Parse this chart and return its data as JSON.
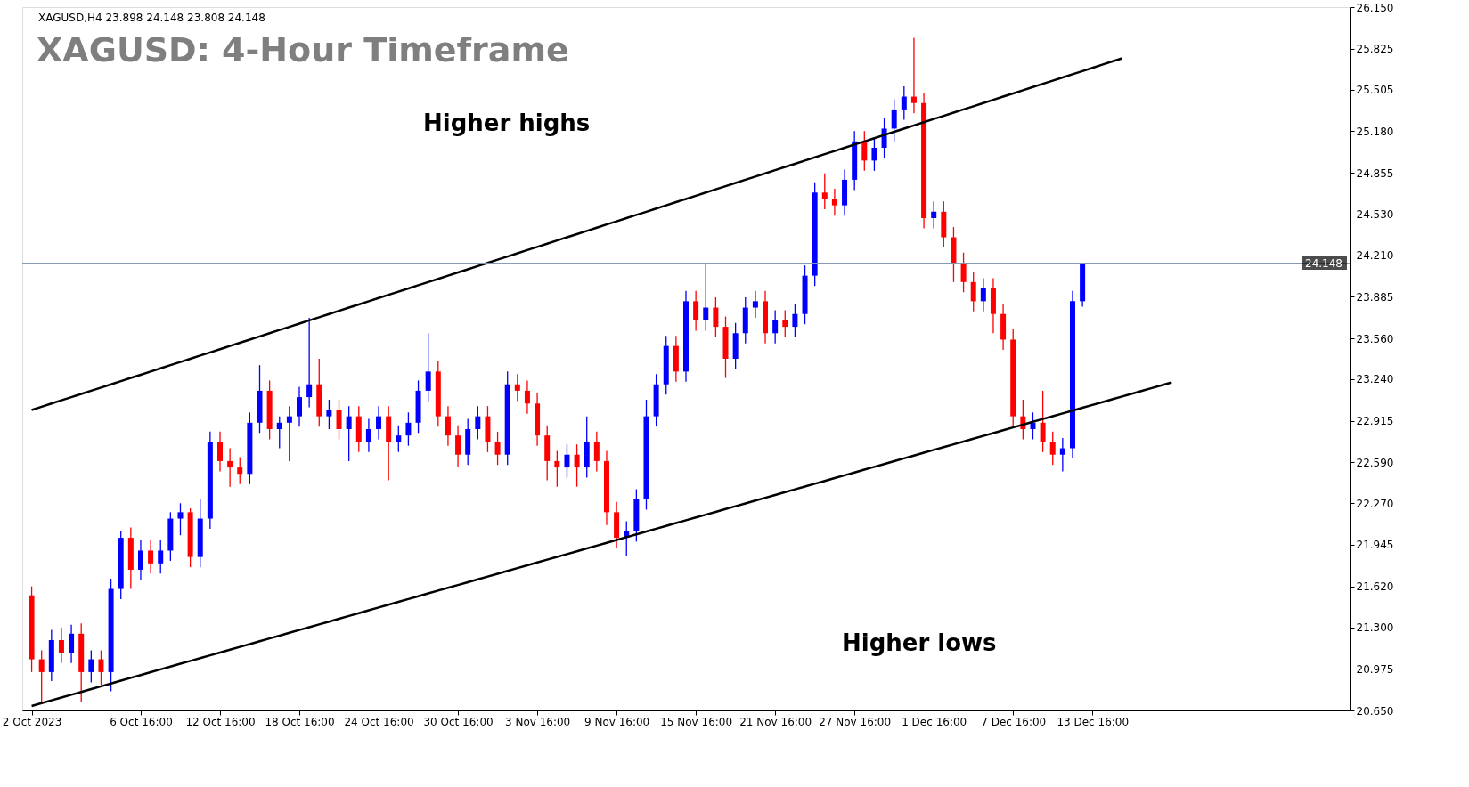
{
  "chart_data": {
    "type": "candlestick",
    "title": "XAGUSD: 4-Hour Timeframe",
    "subtitle": "XAGUSD,H4  23.898 24.148 23.808 24.148",
    "categories": [
      "2 Oct 2023",
      null,
      null,
      null,
      null,
      null,
      null,
      null,
      null,
      null,
      null,
      "6 Oct 16:00",
      null,
      null,
      null,
      null,
      null,
      null,
      null,
      "12 Oct 16:00",
      null,
      null,
      null,
      null,
      null,
      null,
      null,
      "18 Oct 16:00",
      null,
      null,
      null,
      null,
      null,
      null,
      null,
      "24 Oct 16:00",
      null,
      null,
      null,
      null,
      null,
      null,
      null,
      "30 Oct 16:00",
      null,
      null,
      null,
      null,
      null,
      null,
      null,
      "3 Nov 16:00",
      null,
      null,
      null,
      null,
      null,
      null,
      null,
      "9 Nov 16:00",
      null,
      null,
      null,
      null,
      null,
      null,
      null,
      "15 Nov 16:00",
      null,
      null,
      null,
      null,
      null,
      null,
      null,
      "21 Nov 16:00",
      null,
      null,
      null,
      null,
      null,
      null,
      null,
      "27 Nov 16:00",
      null,
      null,
      null,
      null,
      null,
      null,
      null,
      "1 Dec 16:00",
      null,
      null,
      null,
      null,
      null,
      null,
      null,
      "7 Dec 16:00",
      null,
      null,
      null,
      null,
      null,
      null,
      null,
      "13 Dec 16:00",
      null,
      null,
      null,
      null,
      null,
      null,
      null,
      null,
      null,
      null,
      null,
      null,
      null,
      null,
      null,
      null,
      null,
      null,
      null,
      null,
      null,
      null,
      null,
      null,
      null
    ],
    "ohlc": [
      [
        21.55,
        21.62,
        20.95,
        21.05
      ],
      [
        21.05,
        21.12,
        20.7,
        20.95
      ],
      [
        20.95,
        21.28,
        20.88,
        21.2
      ],
      [
        21.2,
        21.3,
        21.02,
        21.1
      ],
      [
        21.1,
        21.32,
        21.02,
        21.25
      ],
      [
        21.25,
        21.33,
        20.72,
        20.95
      ],
      [
        20.95,
        21.12,
        20.87,
        21.05
      ],
      [
        21.05,
        21.12,
        20.85,
        20.95
      ],
      [
        20.95,
        21.68,
        20.8,
        21.6
      ],
      [
        21.6,
        22.05,
        21.52,
        22.0
      ],
      [
        22.0,
        22.08,
        21.6,
        21.75
      ],
      [
        21.75,
        21.98,
        21.67,
        21.9
      ],
      [
        21.9,
        21.98,
        21.72,
        21.8
      ],
      [
        21.8,
        21.98,
        21.72,
        21.9
      ],
      [
        21.9,
        22.2,
        21.82,
        22.15
      ],
      [
        22.15,
        22.27,
        22.02,
        22.2
      ],
      [
        22.2,
        22.23,
        21.77,
        21.85
      ],
      [
        21.85,
        22.3,
        21.77,
        22.15
      ],
      [
        22.15,
        22.83,
        22.07,
        22.75
      ],
      [
        22.75,
        22.83,
        22.52,
        22.6
      ],
      [
        22.6,
        22.7,
        22.4,
        22.55
      ],
      [
        22.55,
        22.63,
        22.42,
        22.5
      ],
      [
        22.5,
        22.98,
        22.42,
        22.9
      ],
      [
        22.9,
        23.35,
        22.82,
        23.15
      ],
      [
        23.15,
        23.23,
        22.77,
        22.85
      ],
      [
        22.85,
        22.95,
        22.7,
        22.9
      ],
      [
        22.9,
        23.03,
        22.6,
        22.95
      ],
      [
        22.95,
        23.18,
        22.87,
        23.1
      ],
      [
        23.1,
        23.72,
        23.02,
        23.2
      ],
      [
        23.2,
        23.4,
        22.87,
        22.95
      ],
      [
        22.95,
        23.08,
        22.85,
        23.0
      ],
      [
        23.0,
        23.08,
        22.77,
        22.85
      ],
      [
        22.85,
        23.03,
        22.6,
        22.95
      ],
      [
        22.95,
        23.03,
        22.67,
        22.75
      ],
      [
        22.75,
        22.93,
        22.67,
        22.85
      ],
      [
        22.85,
        23.03,
        22.77,
        22.95
      ],
      [
        22.95,
        23.03,
        22.45,
        22.75
      ],
      [
        22.75,
        22.88,
        22.67,
        22.8
      ],
      [
        22.8,
        22.98,
        22.72,
        22.9
      ],
      [
        22.9,
        23.23,
        22.82,
        23.15
      ],
      [
        23.15,
        23.6,
        23.07,
        23.3
      ],
      [
        23.3,
        23.38,
        22.87,
        22.95
      ],
      [
        22.95,
        23.03,
        22.72,
        22.8
      ],
      [
        22.8,
        22.88,
        22.55,
        22.65
      ],
      [
        22.65,
        22.93,
        22.57,
        22.85
      ],
      [
        22.85,
        23.03,
        22.77,
        22.95
      ],
      [
        22.95,
        23.03,
        22.67,
        22.75
      ],
      [
        22.75,
        22.83,
        22.57,
        22.65
      ],
      [
        22.65,
        23.3,
        22.57,
        23.2
      ],
      [
        23.2,
        23.28,
        23.07,
        23.15
      ],
      [
        23.15,
        23.23,
        22.97,
        23.05
      ],
      [
        23.05,
        23.13,
        22.72,
        22.8
      ],
      [
        22.8,
        22.88,
        22.45,
        22.6
      ],
      [
        22.6,
        22.68,
        22.4,
        22.55
      ],
      [
        22.55,
        22.73,
        22.47,
        22.65
      ],
      [
        22.65,
        22.73,
        22.4,
        22.55
      ],
      [
        22.55,
        22.95,
        22.47,
        22.75
      ],
      [
        22.75,
        22.83,
        22.52,
        22.6
      ],
      [
        22.6,
        22.68,
        22.1,
        22.2
      ],
      [
        22.2,
        22.28,
        21.92,
        22.0
      ],
      [
        22.0,
        22.13,
        21.86,
        22.05
      ],
      [
        22.05,
        22.38,
        21.97,
        22.3
      ],
      [
        22.3,
        23.08,
        22.22,
        22.95
      ],
      [
        22.95,
        23.28,
        22.87,
        23.2
      ],
      [
        23.2,
        23.58,
        23.12,
        23.5
      ],
      [
        23.5,
        23.58,
        23.22,
        23.3
      ],
      [
        23.3,
        23.93,
        23.22,
        23.85
      ],
      [
        23.85,
        23.93,
        23.62,
        23.7
      ],
      [
        23.7,
        24.15,
        23.62,
        23.8
      ],
      [
        23.8,
        23.88,
        23.57,
        23.65
      ],
      [
        23.65,
        23.73,
        23.25,
        23.4
      ],
      [
        23.4,
        23.68,
        23.32,
        23.6
      ],
      [
        23.6,
        23.88,
        23.52,
        23.8
      ],
      [
        23.8,
        23.93,
        23.72,
        23.85
      ],
      [
        23.85,
        23.93,
        23.52,
        23.6
      ],
      [
        23.6,
        23.78,
        23.52,
        23.7
      ],
      [
        23.7,
        23.78,
        23.57,
        23.65
      ],
      [
        23.65,
        23.83,
        23.57,
        23.75
      ],
      [
        23.75,
        24.13,
        23.67,
        24.05
      ],
      [
        24.05,
        24.78,
        23.97,
        24.7
      ],
      [
        24.7,
        24.85,
        24.57,
        24.65
      ],
      [
        24.65,
        24.73,
        24.52,
        24.6
      ],
      [
        24.6,
        24.88,
        24.52,
        24.8
      ],
      [
        24.8,
        25.18,
        24.72,
        25.1
      ],
      [
        25.1,
        25.18,
        24.87,
        24.95
      ],
      [
        24.95,
        25.13,
        24.87,
        25.05
      ],
      [
        25.05,
        25.28,
        24.97,
        25.2
      ],
      [
        25.2,
        25.43,
        25.1,
        25.35
      ],
      [
        25.35,
        25.53,
        25.27,
        25.45
      ],
      [
        25.45,
        25.91,
        25.32,
        25.4
      ],
      [
        25.4,
        25.48,
        24.42,
        24.5
      ],
      [
        24.5,
        24.63,
        24.42,
        24.55
      ],
      [
        24.55,
        24.63,
        24.27,
        24.35
      ],
      [
        24.35,
        24.43,
        24.0,
        24.15
      ],
      [
        24.15,
        24.23,
        23.92,
        24.0
      ],
      [
        24.0,
        24.08,
        23.77,
        23.85
      ],
      [
        23.85,
        24.03,
        23.77,
        23.95
      ],
      [
        23.95,
        24.03,
        23.6,
        23.75
      ],
      [
        23.75,
        23.83,
        23.47,
        23.55
      ],
      [
        23.55,
        23.63,
        22.87,
        22.95
      ],
      [
        22.95,
        23.08,
        22.77,
        22.85
      ],
      [
        22.85,
        22.98,
        22.77,
        22.9
      ],
      [
        22.9,
        23.15,
        22.67,
        22.75
      ],
      [
        22.75,
        22.83,
        22.57,
        22.65
      ],
      [
        22.65,
        22.78,
        22.52,
        22.7
      ],
      [
        22.7,
        23.93,
        22.62,
        23.85
      ],
      [
        23.85,
        24.148,
        23.808,
        24.148
      ],
      null,
      null,
      null,
      null,
      null,
      null,
      null,
      null,
      null,
      null,
      null,
      null,
      null,
      null,
      null,
      null,
      null,
      null,
      null,
      null,
      null,
      null,
      null,
      null,
      null,
      null
    ],
    "series": [
      {
        "type": "line",
        "color": "#000000",
        "values": [
          23.0,
          23.025,
          23.05,
          23.075,
          23.1,
          23.125,
          23.15,
          23.175,
          23.2,
          23.225,
          23.25,
          23.275,
          23.3,
          23.325,
          23.35,
          23.375,
          23.4,
          23.425,
          23.45,
          23.475,
          23.5,
          23.525,
          23.55,
          23.575,
          23.6,
          23.625,
          23.65,
          23.675,
          23.7,
          23.725,
          23.75,
          23.775,
          23.8,
          23.825,
          23.85,
          23.875,
          23.9,
          23.925,
          23.95,
          23.975,
          24.0,
          24.025,
          24.05,
          24.075,
          24.1,
          24.125,
          24.15,
          24.175,
          24.2,
          24.225,
          24.25,
          24.275,
          24.3,
          24.325,
          24.35,
          24.375,
          24.4,
          24.425,
          24.45,
          24.475,
          24.5,
          24.525,
          24.55,
          24.575,
          24.6,
          24.625,
          24.65,
          24.675,
          24.7,
          24.725,
          24.75,
          24.775,
          24.8,
          24.825,
          24.85,
          24.875,
          24.9,
          24.925,
          24.95,
          24.975,
          25.0,
          25.025,
          25.05,
          25.075,
          25.1,
          25.125,
          25.15,
          25.175,
          25.2,
          25.225,
          25.25,
          25.275,
          25.3,
          25.325,
          25.35,
          25.375,
          25.4,
          25.425,
          25.45,
          25.475,
          25.5,
          25.525,
          25.55,
          25.575,
          25.6,
          25.625,
          25.65,
          25.675,
          25.7,
          25.725,
          25.75,
          null,
          null,
          null,
          null,
          null,
          null,
          null,
          null,
          null,
          null,
          null,
          null,
          null,
          null,
          null,
          null,
          null,
          null,
          null,
          null,
          null,
          null
        ]
      },
      {
        "type": "line",
        "color": "#000000",
        "values": [
          20.685,
          20.707,
          20.729,
          20.751,
          20.773,
          20.795,
          20.817,
          20.839,
          20.861,
          20.883,
          20.905,
          20.927,
          20.949,
          20.971,
          20.993,
          21.015,
          21.037,
          21.059,
          21.081,
          21.103,
          21.125,
          21.147,
          21.169,
          21.191,
          21.213,
          21.235,
          21.257,
          21.279,
          21.301,
          21.323,
          21.345,
          21.367,
          21.389,
          21.411,
          21.433,
          21.455,
          21.477,
          21.499,
          21.521,
          21.543,
          21.565,
          21.587,
          21.609,
          21.631,
          21.653,
          21.675,
          21.697,
          21.719,
          21.741,
          21.763,
          21.785,
          21.807,
          21.829,
          21.851,
          21.873,
          21.895,
          21.917,
          21.939,
          21.961,
          21.983,
          22.005,
          22.027,
          22.049,
          22.071,
          22.093,
          22.115,
          22.137,
          22.159,
          22.181,
          22.203,
          22.225,
          22.247,
          22.269,
          22.291,
          22.313,
          22.335,
          22.357,
          22.379,
          22.401,
          22.423,
          22.445,
          22.467,
          22.489,
          22.511,
          22.533,
          22.555,
          22.577,
          22.599,
          22.621,
          22.643,
          22.665,
          22.687,
          22.709,
          22.731,
          22.753,
          22.775,
          22.797,
          22.819,
          22.841,
          22.863,
          22.885,
          22.907,
          22.929,
          22.951,
          22.973,
          22.995,
          23.017,
          23.039,
          23.061,
          23.083,
          23.105,
          23.127,
          23.149,
          23.171,
          23.193,
          23.215,
          null,
          null,
          null,
          null,
          null,
          null,
          null,
          null,
          null,
          null,
          null,
          null,
          null,
          null,
          null,
          null,
          null
        ]
      }
    ],
    "ylim": [
      20.65,
      26.15
    ],
    "yticks": [
      {
        "value": 20.65,
        "label": "20.650"
      },
      {
        "value": 20.975,
        "label": "20.975"
      },
      {
        "value": 21.3,
        "label": "21.300"
      },
      {
        "value": 21.62,
        "label": "21.620"
      },
      {
        "value": 21.945,
        "label": "21.945"
      },
      {
        "value": 22.27,
        "label": "22.270"
      },
      {
        "value": 22.59,
        "label": "22.590"
      },
      {
        "value": 22.915,
        "label": "22.915"
      },
      {
        "value": 23.24,
        "label": "23.240"
      },
      {
        "value": 23.56,
        "label": "23.560"
      },
      {
        "value": 23.885,
        "label": "23.885"
      },
      {
        "value": 24.21,
        "label": "24.210"
      },
      {
        "value": 24.53,
        "label": "24.530"
      },
      {
        "value": 24.855,
        "label": "24.855"
      },
      {
        "value": 25.18,
        "label": "25.180"
      },
      {
        "value": 25.505,
        "label": "25.505"
      },
      {
        "value": 25.825,
        "label": "25.825"
      },
      {
        "value": 26.15,
        "label": "26.150"
      }
    ],
    "ref_lines": [
      {
        "axis": "y",
        "value": 24.148,
        "label": "24.148",
        "color": "#8497b0"
      }
    ],
    "annotations": [
      "Higher highs",
      "Higher lows"
    ],
    "grid": false,
    "legend": false
  }
}
